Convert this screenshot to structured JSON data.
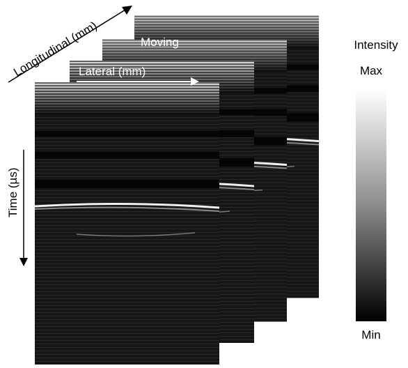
{
  "axes": {
    "longitudinal": "Longitudinal (mm)",
    "lateral": "Lateral (mm)",
    "time": "Time (µs)"
  },
  "motion_label": "Moving",
  "colorbar": {
    "title": "Intensity",
    "max_label": "Max",
    "min_label": "Min"
  }
}
